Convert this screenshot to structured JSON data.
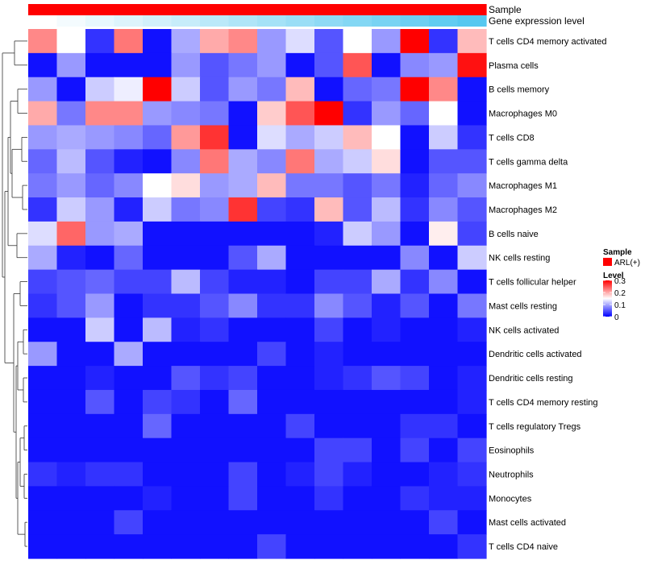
{
  "chart_data": {
    "type": "heatmap",
    "annotation_bars": [
      {
        "name": "Sample",
        "label": "Sample",
        "color_start": "#ff0000",
        "color_end": "#ff0000"
      },
      {
        "name": "gene-expression",
        "label": "Gene expression level",
        "color_start": "#ffffff",
        "color_end": "#56c8f0"
      }
    ],
    "rows": [
      "T cells CD4 memory activated",
      "Plasma cells",
      "B cells memory",
      "Macrophages M0",
      "T cells CD8",
      "T cells gamma delta",
      "Macrophages M1",
      "Macrophages M2",
      "B cells naive",
      "NK cells resting",
      "T cells follicular helper",
      "Mast cells resting",
      "NK cells activated",
      "Dendritic cells activated",
      "Dendritic cells resting",
      "T cells CD4 memory resting",
      "T cells regulatory  Tregs",
      "Eosinophils",
      "Neutrophils",
      "Monocytes",
      "Mast cells activated",
      "T cells CD4 naive"
    ],
    "n_columns": 16,
    "values": [
      [
        0.22,
        0.15,
        0.03,
        0.23,
        0.01,
        0.1,
        0.2,
        0.22,
        0.09,
        0.13,
        0.05,
        0.15,
        0.09,
        0.3,
        0.03,
        0.19
      ],
      [
        0.01,
        0.09,
        0.01,
        0.01,
        0.01,
        0.09,
        0.05,
        0.07,
        0.09,
        0.01,
        0.05,
        0.25,
        0.01,
        0.08,
        0.09,
        0.29
      ],
      [
        0.09,
        0.01,
        0.12,
        0.14,
        0.3,
        0.12,
        0.05,
        0.09,
        0.07,
        0.19,
        0.01,
        0.06,
        0.07,
        0.3,
        0.22,
        0.01
      ],
      [
        0.2,
        0.07,
        0.22,
        0.22,
        0.09,
        0.08,
        0.07,
        0.01,
        0.18,
        0.25,
        0.3,
        0.03,
        0.09,
        0.06,
        0.15,
        0.01
      ],
      [
        0.09,
        0.1,
        0.09,
        0.08,
        0.06,
        0.21,
        0.27,
        0.01,
        0.13,
        0.1,
        0.12,
        0.19,
        0.15,
        0.01,
        0.12,
        0.03
      ],
      [
        0.06,
        0.11,
        0.05,
        0.02,
        0.01,
        0.08,
        0.23,
        0.1,
        0.08,
        0.23,
        0.1,
        0.12,
        0.17,
        0.01,
        0.05,
        0.05
      ],
      [
        0.07,
        0.09,
        0.06,
        0.08,
        0.15,
        0.17,
        0.09,
        0.1,
        0.19,
        0.07,
        0.07,
        0.05,
        0.07,
        0.02,
        0.06,
        0.08
      ],
      [
        0.03,
        0.12,
        0.09,
        0.02,
        0.12,
        0.07,
        0.08,
        0.27,
        0.04,
        0.03,
        0.19,
        0.05,
        0.11,
        0.03,
        0.08,
        0.05
      ],
      [
        0.13,
        0.24,
        0.09,
        0.1,
        0.01,
        0.01,
        0.01,
        0.01,
        0.01,
        0.01,
        0.02,
        0.12,
        0.09,
        0.01,
        0.16,
        0.04
      ],
      [
        0.1,
        0.02,
        0.01,
        0.06,
        0.01,
        0.01,
        0.01,
        0.05,
        0.1,
        0.01,
        0.01,
        0.01,
        0.01,
        0.08,
        0.01,
        0.12
      ],
      [
        0.04,
        0.05,
        0.06,
        0.04,
        0.04,
        0.11,
        0.04,
        0.02,
        0.02,
        0.01,
        0.04,
        0.04,
        0.1,
        0.03,
        0.08,
        0.01
      ],
      [
        0.03,
        0.05,
        0.09,
        0.01,
        0.03,
        0.03,
        0.05,
        0.08,
        0.03,
        0.03,
        0.08,
        0.05,
        0.02,
        0.05,
        0.01,
        0.07
      ],
      [
        0.01,
        0.01,
        0.12,
        0.01,
        0.11,
        0.02,
        0.03,
        0.01,
        0.01,
        0.01,
        0.04,
        0.01,
        0.02,
        0.01,
        0.01,
        0.02
      ],
      [
        0.09,
        0.01,
        0.01,
        0.1,
        0.01,
        0.01,
        0.01,
        0.01,
        0.04,
        0.01,
        0.02,
        0.01,
        0.01,
        0.01,
        0.01,
        0.01
      ],
      [
        0.01,
        0.01,
        0.02,
        0.01,
        0.01,
        0.05,
        0.03,
        0.04,
        0.01,
        0.01,
        0.02,
        0.03,
        0.05,
        0.04,
        0.01,
        0.02
      ],
      [
        0.01,
        0.01,
        0.05,
        0.01,
        0.04,
        0.03,
        0.01,
        0.06,
        0.01,
        0.01,
        0.01,
        0.01,
        0.01,
        0.01,
        0.01,
        0.02
      ],
      [
        0.01,
        0.01,
        0.01,
        0.01,
        0.06,
        0.01,
        0.01,
        0.01,
        0.01,
        0.04,
        0.01,
        0.01,
        0.01,
        0.03,
        0.03,
        0.01
      ],
      [
        0.01,
        0.01,
        0.01,
        0.01,
        0.01,
        0.01,
        0.01,
        0.01,
        0.01,
        0.01,
        0.04,
        0.04,
        0.01,
        0.04,
        0.01,
        0.04
      ],
      [
        0.03,
        0.02,
        0.03,
        0.03,
        0.01,
        0.01,
        0.01,
        0.04,
        0.01,
        0.02,
        0.04,
        0.02,
        0.01,
        0.01,
        0.02,
        0.03
      ],
      [
        0.01,
        0.01,
        0.01,
        0.01,
        0.02,
        0.01,
        0.01,
        0.04,
        0.01,
        0.01,
        0.03,
        0.01,
        0.01,
        0.03,
        0.02,
        0.02
      ],
      [
        0.01,
        0.01,
        0.01,
        0.04,
        0.01,
        0.01,
        0.01,
        0.01,
        0.01,
        0.01,
        0.01,
        0.01,
        0.01,
        0.01,
        0.04,
        0.01
      ],
      [
        0.01,
        0.01,
        0.01,
        0.01,
        0.01,
        0.01,
        0.01,
        0.01,
        0.04,
        0.01,
        0.01,
        0.01,
        0.01,
        0.01,
        0.01,
        0.03
      ]
    ],
    "color_scale": {
      "min": 0,
      "max": 0.3,
      "low": "#0000ff",
      "mid": "#ffffff",
      "high": "#ff0000",
      "mid_value": 0.15
    },
    "legend": {
      "sample_title": "Sample",
      "sample_entry": "ARL(+)",
      "sample_color": "#ff0000",
      "level_title": "Level",
      "level_ticks": [
        {
          "value": 0.3,
          "label": "0.3"
        },
        {
          "value": 0.2,
          "label": "0.2"
        },
        {
          "value": 0.1,
          "label": "0.1"
        },
        {
          "value": 0,
          "label": "0"
        }
      ]
    }
  }
}
